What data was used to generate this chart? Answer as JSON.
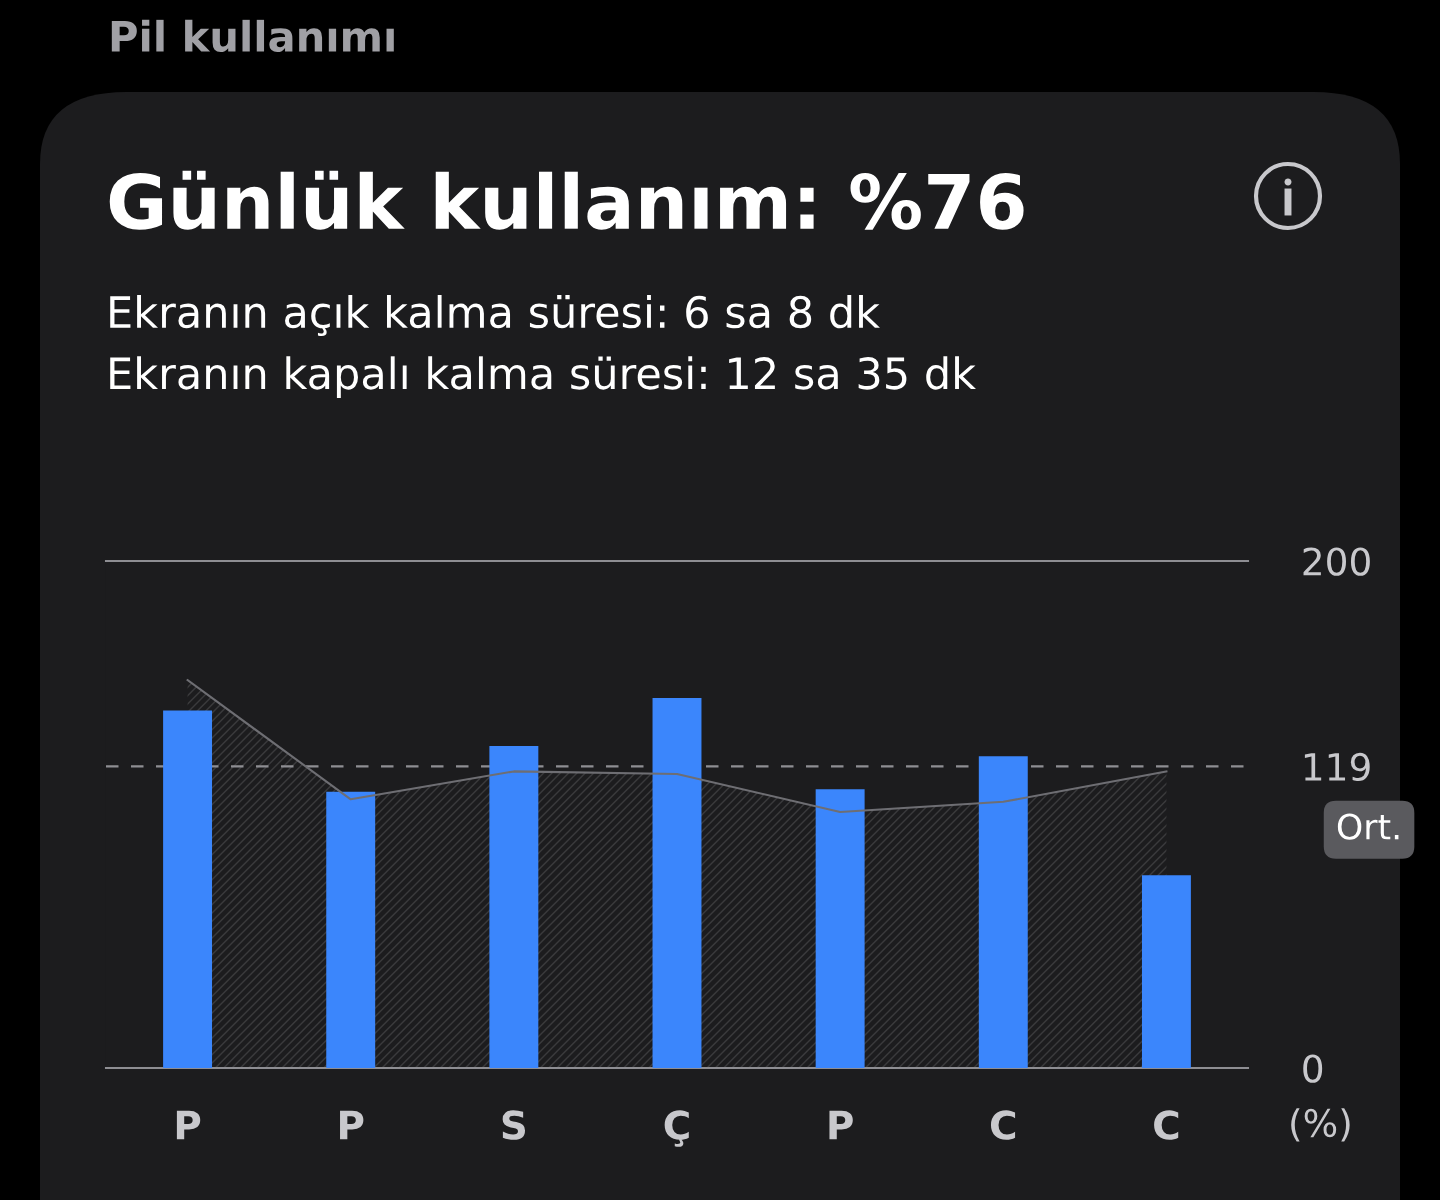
{
  "chart_data": {
    "type": "bar",
    "title": "Günlük kullanım: %76",
    "subtitle": "Ekranın açık kalma süresi: 6 sa 8 dk\nEkranın kapalı kalma süresi: 12 sa 35 dk",
    "annotations": [
      "Pil kullanımı"
    ],
    "ylabel": "(%)",
    "categories": [
      "P",
      "P",
      "S",
      "Ç",
      "P",
      "C",
      "C"
    ],
    "series": [
      {
        "type": "area",
        "color": "#3a3a3c",
        "values": [
          153,
          106,
          117,
          116,
          101,
          105,
          117
        ]
      },
      {
        "color": "#3b86fc",
        "values": [
          141,
          109,
          127,
          146,
          110,
          123,
          76
        ]
      }
    ],
    "ylim": [
      0,
      200
    ],
    "yticks": [
      0,
      119,
      200
    ],
    "ref_lines": [
      {
        "axis": "y",
        "value": 119,
        "label": "Ort.",
        "color": "#8e8e93",
        "line_style": "dashed"
      }
    ],
    "grid": false,
    "legend": false
  }
}
